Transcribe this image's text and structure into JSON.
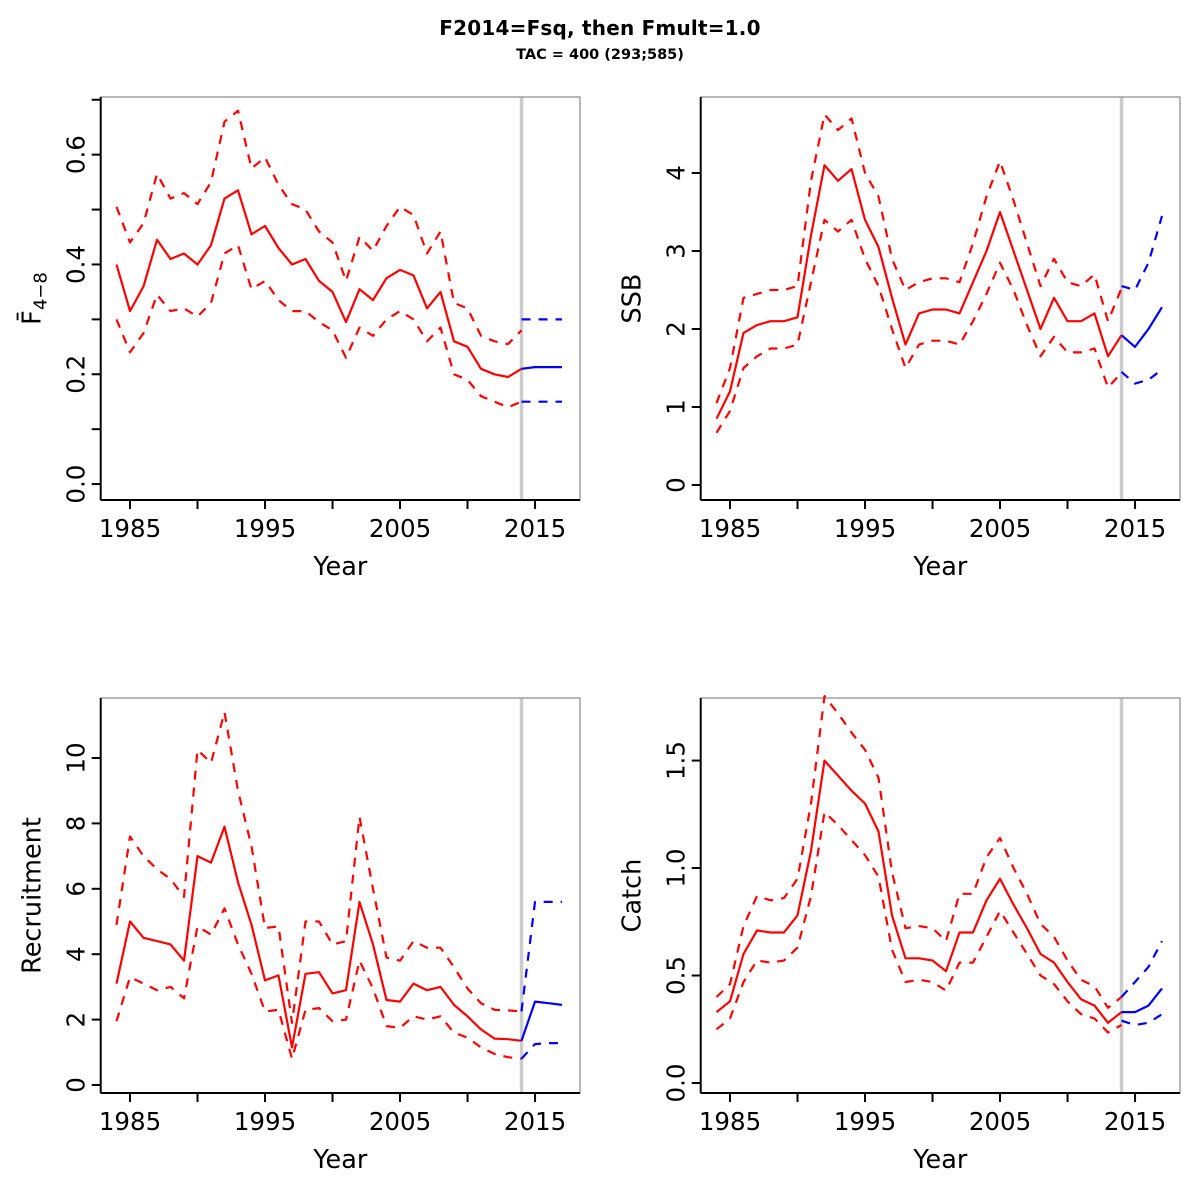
{
  "page": {
    "title": "F2014=Fsq, then Fmult=1.0",
    "subtitle": "TAC = 400 (293;585)"
  },
  "colors": {
    "historic": "#ff0000",
    "forecast": "#0000ff",
    "divider": "#cccccc",
    "axis": "#000000",
    "box": "#999999"
  },
  "chart_data": [
    {
      "id": "fbar",
      "type": "line",
      "ylabel": "F̄",
      "ylabel_sub": "4−8",
      "xlabel": "Year",
      "xlim": [
        1982.83,
        2018.33
      ],
      "ylim": [
        -0.029,
        0.705
      ],
      "grid": false,
      "legend": "none",
      "vline_x": 2014,
      "xticks": [
        {
          "v": 1985,
          "l": "1985"
        },
        {
          "v": 1990,
          "l": ""
        },
        {
          "v": 1995,
          "l": "1995"
        },
        {
          "v": 2000,
          "l": ""
        },
        {
          "v": 2005,
          "l": "2005"
        },
        {
          "v": 2010,
          "l": ""
        },
        {
          "v": 2015,
          "l": "2015"
        }
      ],
      "yticks": [
        {
          "v": 0,
          "l": "0.0"
        },
        {
          "v": 0.1,
          "l": ""
        },
        {
          "v": 0.2,
          "l": "0.2"
        },
        {
          "v": 0.3,
          "l": ""
        },
        {
          "v": 0.4,
          "l": "0.4"
        },
        {
          "v": 0.5,
          "l": ""
        },
        {
          "v": 0.6,
          "l": "0.6"
        },
        {
          "v": 0.7,
          "l": ""
        }
      ],
      "series": [
        {
          "name": "historic-upper-ci",
          "color": "historic",
          "dash": true,
          "x_start": 1984,
          "values": [
            0.505,
            0.44,
            0.475,
            0.565,
            0.52,
            0.53,
            0.51,
            0.55,
            0.66,
            0.68,
            0.575,
            0.595,
            0.545,
            0.51,
            0.5,
            0.46,
            0.44,
            0.37,
            0.45,
            0.425,
            0.47,
            0.505,
            0.49,
            0.42,
            0.46,
            0.33,
            0.32,
            0.27,
            0.26,
            0.255,
            0.28
          ]
        },
        {
          "name": "historic-lower-ci",
          "color": "historic",
          "dash": true,
          "x_start": 1984,
          "values": [
            0.3,
            0.24,
            0.275,
            0.345,
            0.315,
            0.32,
            0.305,
            0.33,
            0.42,
            0.435,
            0.355,
            0.37,
            0.335,
            0.315,
            0.315,
            0.295,
            0.28,
            0.23,
            0.285,
            0.27,
            0.3,
            0.315,
            0.3,
            0.26,
            0.285,
            0.2,
            0.19,
            0.16,
            0.15,
            0.14,
            0.15
          ]
        },
        {
          "name": "historic-median",
          "color": "historic",
          "dash": false,
          "x_start": 1984,
          "values": [
            0.4,
            0.315,
            0.36,
            0.445,
            0.41,
            0.42,
            0.4,
            0.435,
            0.52,
            0.535,
            0.455,
            0.47,
            0.43,
            0.4,
            0.41,
            0.37,
            0.35,
            0.295,
            0.355,
            0.335,
            0.375,
            0.39,
            0.38,
            0.32,
            0.35,
            0.26,
            0.25,
            0.21,
            0.2,
            0.195,
            0.21
          ]
        },
        {
          "name": "forecast-upper-ci",
          "color": "forecast",
          "dash": true,
          "x_start": 2014,
          "values": [
            0.3,
            0.3,
            0.3,
            0.3
          ]
        },
        {
          "name": "forecast-lower-ci",
          "color": "forecast",
          "dash": true,
          "x_start": 2014,
          "values": [
            0.15,
            0.15,
            0.15,
            0.15
          ]
        },
        {
          "name": "forecast-median",
          "color": "forecast",
          "dash": false,
          "x_start": 2014,
          "values": [
            0.21,
            0.213,
            0.213,
            0.213
          ]
        }
      ]
    },
    {
      "id": "ssb",
      "type": "line",
      "ylabel": "SSB",
      "ylabel_sub": "",
      "xlabel": "Year",
      "xlim": [
        1982.83,
        2018.33
      ],
      "ylim": [
        -0.192,
        4.974
      ],
      "grid": false,
      "legend": "none",
      "vline_x": 2014,
      "xticks": [
        {
          "v": 1985,
          "l": "1985"
        },
        {
          "v": 1990,
          "l": ""
        },
        {
          "v": 1995,
          "l": "1995"
        },
        {
          "v": 2000,
          "l": ""
        },
        {
          "v": 2005,
          "l": "2005"
        },
        {
          "v": 2010,
          "l": ""
        },
        {
          "v": 2015,
          "l": "2015"
        }
      ],
      "yticks": [
        {
          "v": 0,
          "l": "0"
        },
        {
          "v": 1,
          "l": "1"
        },
        {
          "v": 2,
          "l": "2"
        },
        {
          "v": 3,
          "l": "3"
        },
        {
          "v": 4,
          "l": "4"
        }
      ],
      "series": [
        {
          "name": "historic-upper-ci",
          "color": "historic",
          "dash": true,
          "x_start": 1984,
          "values": [
            1.05,
            1.5,
            2.4,
            2.45,
            2.5,
            2.5,
            2.55,
            3.9,
            4.75,
            4.55,
            4.7,
            4.0,
            3.7,
            2.9,
            2.5,
            2.6,
            2.65,
            2.65,
            2.6,
            3.1,
            3.7,
            4.15,
            3.65,
            3.1,
            2.55,
            2.9,
            2.6,
            2.55,
            2.7,
            2.1,
            2.52
          ]
        },
        {
          "name": "historic-lower-ci",
          "color": "historic",
          "dash": true,
          "x_start": 1984,
          "values": [
            0.67,
            0.95,
            1.5,
            1.65,
            1.75,
            1.75,
            1.8,
            2.6,
            3.4,
            3.25,
            3.4,
            2.9,
            2.55,
            2.0,
            1.5,
            1.8,
            1.85,
            1.85,
            1.8,
            2.1,
            2.45,
            2.85,
            2.5,
            2.05,
            1.65,
            1.9,
            1.7,
            1.7,
            1.75,
            1.25,
            1.44
          ]
        },
        {
          "name": "historic-median",
          "color": "historic",
          "dash": false,
          "x_start": 1984,
          "values": [
            0.85,
            1.2,
            1.95,
            2.05,
            2.1,
            2.1,
            2.15,
            3.2,
            4.1,
            3.9,
            4.05,
            3.4,
            3.05,
            2.4,
            1.8,
            2.2,
            2.25,
            2.25,
            2.2,
            2.6,
            3.0,
            3.5,
            3.0,
            2.5,
            2.0,
            2.4,
            2.1,
            2.1,
            2.2,
            1.65,
            1.92
          ]
        },
        {
          "name": "forecast-upper-ci",
          "color": "forecast",
          "dash": true,
          "x_start": 2014,
          "values": [
            2.55,
            2.5,
            2.85,
            3.45
          ]
        },
        {
          "name": "forecast-lower-ci",
          "color": "forecast",
          "dash": true,
          "x_start": 2014,
          "values": [
            1.45,
            1.3,
            1.35,
            1.48
          ]
        },
        {
          "name": "forecast-median",
          "color": "forecast",
          "dash": false,
          "x_start": 2014,
          "values": [
            1.92,
            1.77,
            2.0,
            2.28
          ]
        }
      ]
    },
    {
      "id": "recruitment",
      "type": "line",
      "ylabel": "Recruitment",
      "ylabel_sub": "",
      "xlabel": "Year",
      "xlim": [
        1982.83,
        2018.33
      ],
      "ylim": [
        -0.245,
        11.835
      ],
      "grid": false,
      "legend": "none",
      "vline_x": 2014,
      "xticks": [
        {
          "v": 1985,
          "l": "1985"
        },
        {
          "v": 1990,
          "l": ""
        },
        {
          "v": 1995,
          "l": "1995"
        },
        {
          "v": 2000,
          "l": ""
        },
        {
          "v": 2005,
          "l": "2005"
        },
        {
          "v": 2010,
          "l": ""
        },
        {
          "v": 2015,
          "l": "2015"
        }
      ],
      "yticks": [
        {
          "v": 0,
          "l": "0"
        },
        {
          "v": 2,
          "l": "2"
        },
        {
          "v": 4,
          "l": "4"
        },
        {
          "v": 6,
          "l": "6"
        },
        {
          "v": 8,
          "l": "8"
        },
        {
          "v": 10,
          "l": "10"
        }
      ],
      "series": [
        {
          "name": "historic-upper-ci",
          "color": "historic",
          "dash": true,
          "x_start": 1984,
          "values": [
            4.9,
            7.6,
            7.0,
            6.6,
            6.3,
            5.75,
            10.25,
            9.85,
            11.4,
            9.0,
            7.3,
            4.8,
            4.85,
            1.9,
            5.0,
            5.0,
            4.3,
            4.4,
            8.2,
            6.0,
            3.9,
            3.8,
            4.4,
            4.2,
            4.2,
            3.6,
            2.95,
            2.5,
            2.3,
            2.28,
            2.25
          ]
        },
        {
          "name": "historic-lower-ci",
          "color": "historic",
          "dash": true,
          "x_start": 1984,
          "values": [
            1.95,
            3.3,
            3.1,
            2.9,
            3.0,
            2.65,
            4.85,
            4.6,
            5.4,
            4.3,
            3.4,
            2.25,
            2.3,
            0.8,
            2.3,
            2.35,
            1.95,
            2.0,
            3.8,
            2.95,
            1.8,
            1.75,
            2.1,
            2.0,
            2.1,
            1.6,
            1.45,
            1.15,
            0.95,
            0.85,
            0.8
          ]
        },
        {
          "name": "historic-median",
          "color": "historic",
          "dash": false,
          "x_start": 1984,
          "values": [
            3.1,
            5.0,
            4.5,
            4.4,
            4.3,
            3.8,
            7.0,
            6.8,
            7.9,
            6.2,
            4.9,
            3.2,
            3.35,
            1.15,
            3.4,
            3.45,
            2.8,
            2.9,
            5.6,
            4.3,
            2.6,
            2.55,
            3.1,
            2.9,
            3.0,
            2.45,
            2.1,
            1.7,
            1.42,
            1.4,
            1.35
          ]
        },
        {
          "name": "forecast-upper-ci",
          "color": "forecast",
          "dash": true,
          "x_start": 2014,
          "values": [
            2.25,
            5.6,
            5.6,
            5.6
          ]
        },
        {
          "name": "forecast-lower-ci",
          "color": "forecast",
          "dash": true,
          "x_start": 2014,
          "values": [
            0.8,
            1.25,
            1.28,
            1.28
          ]
        },
        {
          "name": "forecast-median",
          "color": "forecast",
          "dash": false,
          "x_start": 2014,
          "values": [
            1.35,
            2.55,
            2.5,
            2.45
          ]
        }
      ]
    },
    {
      "id": "catch",
      "type": "line",
      "ylabel": "Catch",
      "ylabel_sub": "",
      "xlabel": "Year",
      "xlim": [
        1982.83,
        2018.33
      ],
      "ylim": [
        -0.0465,
        1.791
      ],
      "grid": false,
      "legend": "none",
      "vline_x": 2014,
      "xticks": [
        {
          "v": 1985,
          "l": "1985"
        },
        {
          "v": 1990,
          "l": ""
        },
        {
          "v": 1995,
          "l": "1995"
        },
        {
          "v": 2000,
          "l": ""
        },
        {
          "v": 2005,
          "l": "2005"
        },
        {
          "v": 2010,
          "l": ""
        },
        {
          "v": 2015,
          "l": "2015"
        }
      ],
      "yticks": [
        {
          "v": 0,
          "l": "0.0"
        },
        {
          "v": 0.5,
          "l": "0.5"
        },
        {
          "v": 1,
          "l": "1.0"
        },
        {
          "v": 1.5,
          "l": "1.5"
        }
      ],
      "series": [
        {
          "name": "historic-upper-ci",
          "color": "historic",
          "dash": true,
          "x_start": 1984,
          "values": [
            0.4,
            0.46,
            0.73,
            0.87,
            0.85,
            0.86,
            0.95,
            1.3,
            1.8,
            1.72,
            1.63,
            1.55,
            1.42,
            0.98,
            0.72,
            0.73,
            0.72,
            0.66,
            0.88,
            0.88,
            1.05,
            1.14,
            1.0,
            0.88,
            0.74,
            0.68,
            0.57,
            0.48,
            0.45,
            0.35,
            0.4
          ]
        },
        {
          "name": "historic-lower-ci",
          "color": "historic",
          "dash": true,
          "x_start": 1984,
          "values": [
            0.25,
            0.3,
            0.47,
            0.57,
            0.56,
            0.57,
            0.63,
            0.87,
            1.26,
            1.2,
            1.13,
            1.06,
            0.96,
            0.62,
            0.47,
            0.48,
            0.47,
            0.43,
            0.56,
            0.56,
            0.68,
            0.8,
            0.7,
            0.6,
            0.5,
            0.46,
            0.38,
            0.32,
            0.3,
            0.235,
            0.27
          ]
        },
        {
          "name": "historic-median",
          "color": "historic",
          "dash": false,
          "x_start": 1984,
          "values": [
            0.33,
            0.38,
            0.6,
            0.71,
            0.7,
            0.7,
            0.78,
            1.08,
            1.5,
            1.43,
            1.36,
            1.3,
            1.17,
            0.78,
            0.58,
            0.58,
            0.57,
            0.52,
            0.7,
            0.7,
            0.85,
            0.95,
            0.83,
            0.72,
            0.6,
            0.56,
            0.47,
            0.39,
            0.36,
            0.28,
            0.33
          ]
        },
        {
          "name": "forecast-upper-ci",
          "color": "forecast",
          "dash": true,
          "x_start": 2014,
          "values": [
            0.4,
            0.47,
            0.54,
            0.66
          ]
        },
        {
          "name": "forecast-lower-ci",
          "color": "forecast",
          "dash": true,
          "x_start": 2014,
          "values": [
            0.29,
            0.27,
            0.28,
            0.32
          ]
        },
        {
          "name": "forecast-median",
          "color": "forecast",
          "dash": false,
          "x_start": 2014,
          "values": [
            0.33,
            0.33,
            0.36,
            0.44
          ]
        }
      ]
    }
  ]
}
